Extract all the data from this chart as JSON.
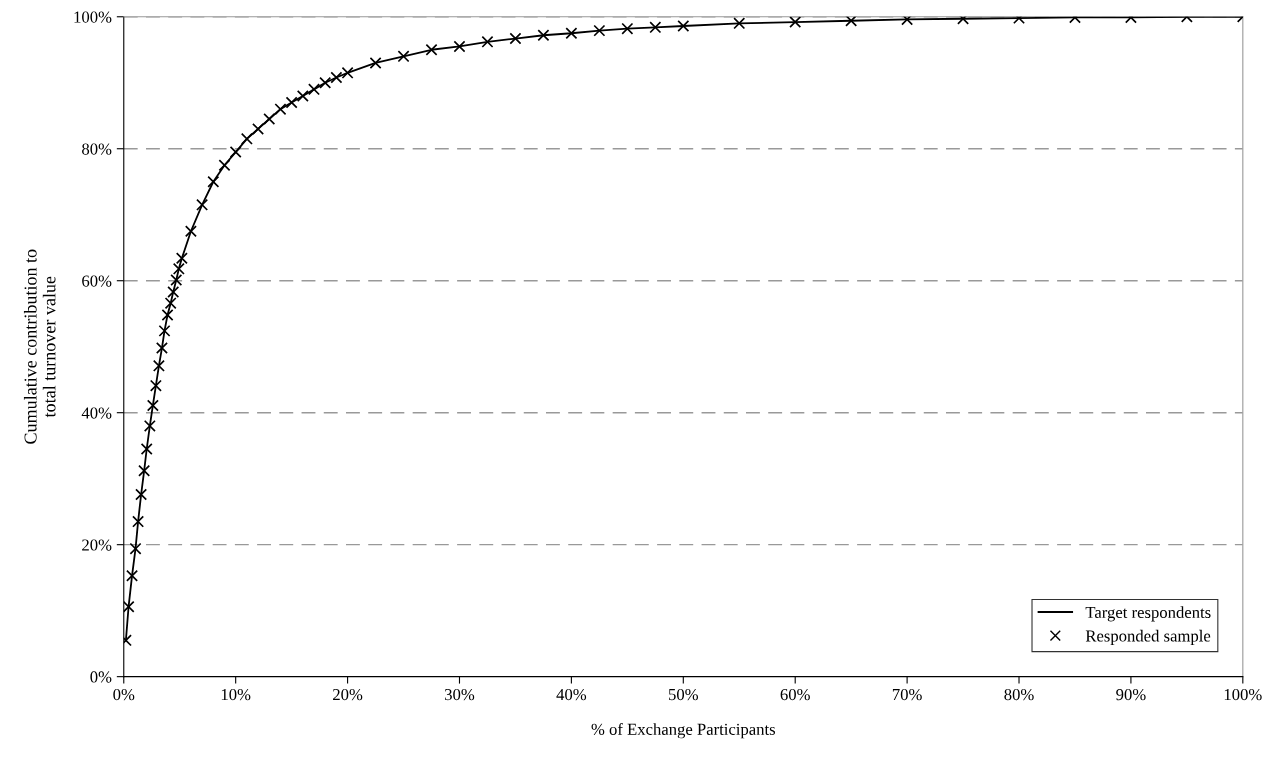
{
  "chart_data": {
    "type": "line",
    "xlabel": "% of Exchange Participants",
    "ylabel": "Cumulative contribution to\ntotal turnover value",
    "x": [
      0.19,
      0.43,
      0.74,
      1.05,
      1.28,
      1.55,
      1.82,
      2.05,
      2.33,
      2.6,
      2.87,
      3.14,
      3.41,
      3.64,
      3.91,
      4.19,
      4.42,
      4.69,
      4.92,
      5.19,
      6,
      7,
      8,
      9,
      10,
      11,
      12,
      13,
      14,
      15,
      16,
      17,
      18,
      19,
      20,
      22.5,
      25,
      27.5,
      30,
      32.5,
      35,
      37.5,
      40,
      42.5,
      45,
      47.5,
      50,
      55,
      60,
      65,
      70,
      75,
      80,
      85,
      90,
      95,
      100
    ],
    "series": [
      {
        "name": "Target respondents",
        "color": "#000000",
        "marker": "none",
        "line_style": "solid",
        "values": [
          5.5,
          10.6,
          15.3,
          19.4,
          23.5,
          27.6,
          31.2,
          34.5,
          38.0,
          41.1,
          44.1,
          47.1,
          49.8,
          52.4,
          54.8,
          56.6,
          58.3,
          60.1,
          61.8,
          63.4,
          67.5,
          71.5,
          75,
          77.5,
          79.5,
          81.5,
          83,
          84.5,
          86,
          87,
          88,
          89,
          90,
          90.8,
          91.5,
          93,
          94,
          95,
          95.5,
          96.2,
          96.7,
          97.2,
          97.5,
          97.9,
          98.2,
          98.4,
          98.6,
          99,
          99.2,
          99.4,
          99.6,
          99.7,
          99.8,
          99.9,
          99.9,
          100,
          100
        ]
      },
      {
        "name": "Responded sample",
        "type": "scatter",
        "color": "#000000",
        "marker": "cross",
        "values": [
          5.5,
          10.6,
          15.3,
          19.4,
          23.5,
          27.6,
          31.2,
          34.5,
          38.0,
          41.1,
          44.1,
          47.1,
          49.8,
          52.4,
          54.8,
          56.6,
          58.3,
          60.1,
          61.8,
          63.4,
          67.5,
          71.5,
          75,
          77.5,
          79.5,
          81.5,
          83,
          84.5,
          86,
          87,
          88,
          89,
          90,
          90.8,
          91.5,
          93,
          94,
          95,
          95.5,
          96.2,
          96.7,
          97.2,
          97.5,
          97.9,
          98.2,
          98.4,
          98.6,
          99,
          99.2,
          99.4,
          99.6,
          99.7,
          99.8,
          99.9,
          99.9,
          100,
          100
        ]
      }
    ],
    "xlim": [
      0,
      100
    ],
    "ylim": [
      0,
      100
    ],
    "xticks": [
      {
        "value": 0,
        "label": "0%"
      },
      {
        "value": 10,
        "label": "10%"
      },
      {
        "value": 20,
        "label": "20%"
      },
      {
        "value": 30,
        "label": "30%"
      },
      {
        "value": 40,
        "label": "40%"
      },
      {
        "value": 50,
        "label": "50%"
      },
      {
        "value": 60,
        "label": "60%"
      },
      {
        "value": 70,
        "label": "70%"
      },
      {
        "value": 80,
        "label": "80%"
      },
      {
        "value": 90,
        "label": "90%"
      },
      {
        "value": 100,
        "label": "100%"
      }
    ],
    "yticks": [
      {
        "value": 0,
        "label": "0%"
      },
      {
        "value": 20,
        "label": "20%"
      },
      {
        "value": 40,
        "label": "40%"
      },
      {
        "value": 60,
        "label": "60%"
      },
      {
        "value": 80,
        "label": "80%"
      },
      {
        "value": 100,
        "label": "100%"
      }
    ],
    "grid": "y",
    "legend": "bottom right"
  }
}
